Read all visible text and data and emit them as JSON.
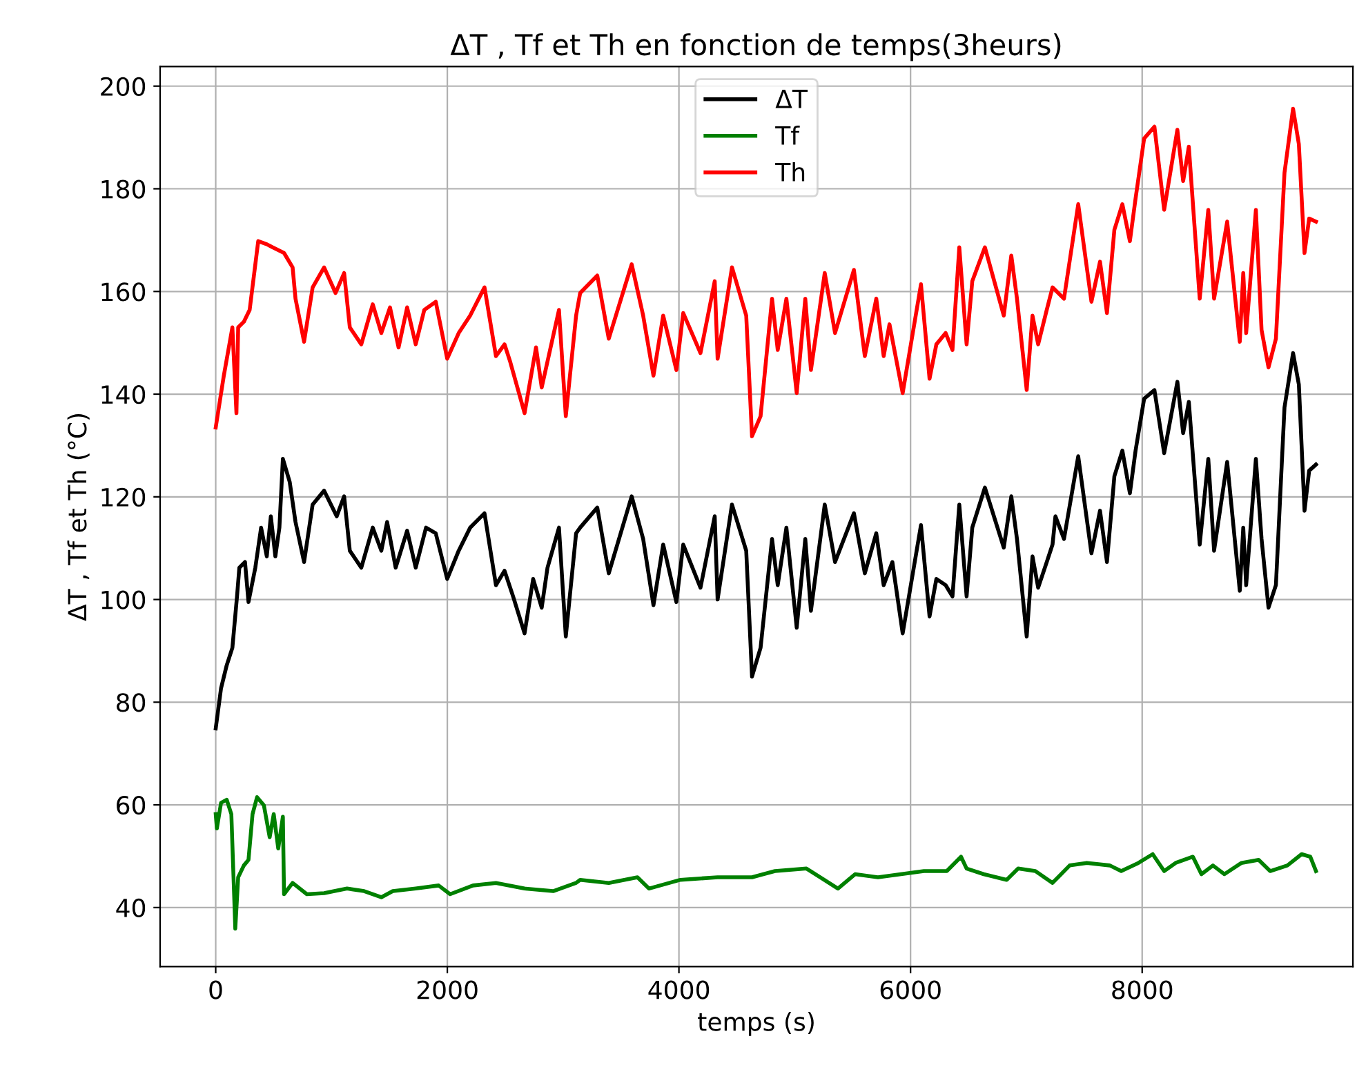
{
  "chart_data": {
    "type": "line",
    "title": "ΔT , Tf et Th en fonction de temps(3heurs)",
    "xlabel": "temps (s)",
    "ylabel": "ΔT , Tf et Th (°C)",
    "xlim": [
      -480,
      9820
    ],
    "ylim": [
      28.5,
      203.8
    ],
    "xticks": [
      0,
      2000,
      4000,
      6000,
      8000
    ],
    "yticks": [
      40,
      60,
      80,
      100,
      120,
      140,
      160,
      180,
      200
    ],
    "grid": true,
    "legend": "top",
    "line_style": "solid",
    "marker": "none",
    "series": [
      {
        "name": "ΔT",
        "color": "#000000",
        "x": [
          0,
          46,
          95,
          144,
          184,
          204,
          253,
          283,
          342,
          392,
          441,
          476,
          515,
          550,
          580,
          639,
          689,
          763,
          837,
          936,
          1045,
          1109,
          1158,
          1257,
          1356,
          1430,
          1480,
          1554,
          1653,
          1727,
          1816,
          1900,
          1999,
          2098,
          2197,
          2321,
          2420,
          2494,
          2568,
          2667,
          2741,
          2815,
          2865,
          2964,
          3023,
          3112,
          3147,
          3295,
          3394,
          3592,
          3691,
          3780,
          3864,
          3978,
          4037,
          4186,
          4309,
          4334,
          4458,
          4581,
          4631,
          4705,
          4804,
          4853,
          4928,
          5017,
          5091,
          5140,
          5259,
          5348,
          5511,
          5605,
          5704,
          5768,
          5843,
          5932,
          6090,
          6164,
          6223,
          6303,
          6362,
          6421,
          6484,
          6533,
          6642,
          6805,
          6870,
          6919,
          7003,
          7053,
          7102,
          7176,
          7226,
          7251,
          7325,
          7448,
          7562,
          7636,
          7696,
          7760,
          7829,
          7894,
          7943,
          8017,
          8106,
          8190,
          8304,
          8354,
          8403,
          8497,
          8571,
          8621,
          8734,
          8843,
          8873,
          8898,
          8982,
          9031,
          9091,
          9155,
          9229,
          9303,
          9353,
          9402,
          9442,
          9501
        ],
        "values": [
          74.9,
          82.7,
          87.2,
          90.6,
          100.6,
          106.2,
          107.3,
          99.5,
          106.2,
          114,
          108.4,
          116.2,
          108.4,
          114,
          127.4,
          122.9,
          115.1,
          107.3,
          118.5,
          121.2,
          116.2,
          120.1,
          109.5,
          106.2,
          114,
          109.5,
          115.1,
          106.2,
          113.4,
          106.2,
          114,
          112.9,
          104,
          109.5,
          114,
          116.8,
          102.8,
          105.6,
          100.6,
          93.4,
          104,
          98.4,
          106.2,
          114,
          92.8,
          112.9,
          114,
          117.9,
          105.1,
          120.1,
          111.8,
          98.9,
          110.7,
          99.5,
          110.7,
          102.3,
          116.2,
          100,
          118.5,
          109.5,
          85,
          90.6,
          111.8,
          102.8,
          114,
          94.5,
          111.8,
          97.8,
          118.5,
          107.3,
          116.8,
          105.1,
          112.9,
          102.8,
          107.3,
          93.4,
          114.5,
          96.7,
          104,
          102.8,
          100.6,
          118.5,
          100.6,
          114,
          121.8,
          110.1,
          120.1,
          111.8,
          92.8,
          108.4,
          102.3,
          107.3,
          110.7,
          116.2,
          111.8,
          127.9,
          109,
          117.3,
          107.3,
          124,
          129,
          120.7,
          129,
          139.1,
          140.8,
          128.5,
          142.4,
          132.4,
          138.5,
          110.7,
          127.4,
          109.5,
          126.8,
          101.7,
          114,
          102.8,
          127.4,
          111.8,
          98.4,
          102.8,
          137.4,
          148,
          141.9,
          117.3,
          125.1,
          126.3
        ]
      },
      {
        "name": "Tf",
        "color": "#008000",
        "x": [
          0,
          10,
          46,
          95,
          135,
          169,
          194,
          243,
          283,
          318,
          357,
          416,
          466,
          501,
          540,
          580,
          590,
          664,
          787,
          936,
          1134,
          1282,
          1430,
          1529,
          1727,
          1925,
          2024,
          2222,
          2420,
          2667,
          2914,
          3112,
          3147,
          3394,
          3642,
          3741,
          4013,
          4334,
          4631,
          4829,
          5101,
          5373,
          5521,
          5719,
          5917,
          6115,
          6313,
          6436,
          6484,
          6632,
          6830,
          6929,
          7078,
          7226,
          7374,
          7523,
          7721,
          7819,
          7968,
          8091,
          8190,
          8289,
          8438,
          8512,
          8611,
          8710,
          8858,
          9006,
          9105,
          9254,
          9377,
          9452,
          9501
        ],
        "values": [
          58.2,
          55.4,
          60.4,
          61,
          58.2,
          35.9,
          45.9,
          48.2,
          49.3,
          58.2,
          61.5,
          59.9,
          53.7,
          58.2,
          51.5,
          57.7,
          42.6,
          44.8,
          42.6,
          42.8,
          43.7,
          43.2,
          42,
          43.2,
          43.7,
          44.3,
          42.6,
          44.3,
          44.8,
          43.7,
          43.2,
          44.8,
          45.4,
          44.8,
          45.9,
          43.7,
          45.4,
          45.9,
          45.9,
          47.1,
          47.6,
          43.7,
          46.5,
          45.9,
          46.5,
          47.1,
          47.1,
          49.9,
          47.6,
          46.5,
          45.4,
          47.6,
          47.1,
          44.8,
          48.2,
          48.7,
          48.2,
          47.1,
          48.7,
          50.4,
          47.1,
          48.7,
          49.9,
          46.5,
          48.2,
          46.5,
          48.7,
          49.3,
          47.1,
          48.2,
          50.4,
          49.9,
          47.1
        ]
      },
      {
        "name": "Th",
        "color": "#ff0000",
        "x": [
          0,
          70,
          144,
          179,
          194,
          243,
          293,
          367,
          441,
          491,
          590,
          664,
          689,
          763,
          837,
          936,
          1035,
          1109,
          1158,
          1257,
          1356,
          1430,
          1505,
          1579,
          1653,
          1727,
          1801,
          1900,
          1999,
          2098,
          2197,
          2321,
          2420,
          2494,
          2543,
          2667,
          2766,
          2815,
          2964,
          3023,
          3112,
          3147,
          3295,
          3394,
          3592,
          3691,
          3780,
          3864,
          3978,
          4037,
          4186,
          4309,
          4334,
          4458,
          4581,
          4631,
          4705,
          4804,
          4853,
          4928,
          5017,
          5091,
          5140,
          5259,
          5348,
          5511,
          5605,
          5704,
          5768,
          5818,
          5932,
          6090,
          6164,
          6223,
          6303,
          6362,
          6421,
          6484,
          6533,
          6642,
          6805,
          6870,
          6919,
          7003,
          7053,
          7102,
          7176,
          7226,
          7325,
          7448,
          7562,
          7636,
          7696,
          7760,
          7829,
          7894,
          7943,
          8017,
          8106,
          8190,
          8304,
          8354,
          8403,
          8497,
          8571,
          8621,
          8734,
          8843,
          8873,
          8898,
          8982,
          9031,
          9091,
          9155,
          9229,
          9303,
          9353,
          9402,
          9442,
          9501
        ],
        "values": [
          133.5,
          143.6,
          153,
          136.3,
          153,
          154.1,
          156.4,
          169.8,
          169.2,
          168.6,
          167.5,
          164.7,
          158.6,
          150.2,
          160.8,
          164.7,
          159.7,
          163.6,
          153,
          149.7,
          157.5,
          151.9,
          156.9,
          149.1,
          156.9,
          149.7,
          156.4,
          158,
          146.9,
          151.9,
          155.3,
          160.8,
          147.4,
          149.7,
          146.3,
          136.3,
          149.1,
          141.3,
          156.4,
          135.7,
          155.3,
          159.7,
          163.1,
          150.8,
          165.3,
          155.3,
          143.6,
          155.3,
          144.7,
          155.8,
          148,
          162,
          146.9,
          164.7,
          155.3,
          131.8,
          135.7,
          158.6,
          148.6,
          158.6,
          140.2,
          158.6,
          144.7,
          163.6,
          151.9,
          164.2,
          147.4,
          158.6,
          147.4,
          153.6,
          140.2,
          161.4,
          143,
          149.7,
          151.9,
          148.6,
          168.6,
          149.7,
          162,
          168.6,
          155.3,
          167,
          158.6,
          140.8,
          155.3,
          149.7,
          156.4,
          160.8,
          158.6,
          177,
          158,
          165.8,
          155.8,
          172,
          177,
          169.8,
          178.1,
          189.8,
          192.1,
          175.9,
          191.5,
          181.5,
          188.2,
          158.6,
          175.9,
          158.6,
          173.6,
          150.2,
          163.6,
          151.9,
          175.9,
          152.5,
          145.2,
          150.8,
          183.1,
          195.6,
          188.7,
          167.5,
          174.2,
          173.6
        ]
      }
    ]
  }
}
